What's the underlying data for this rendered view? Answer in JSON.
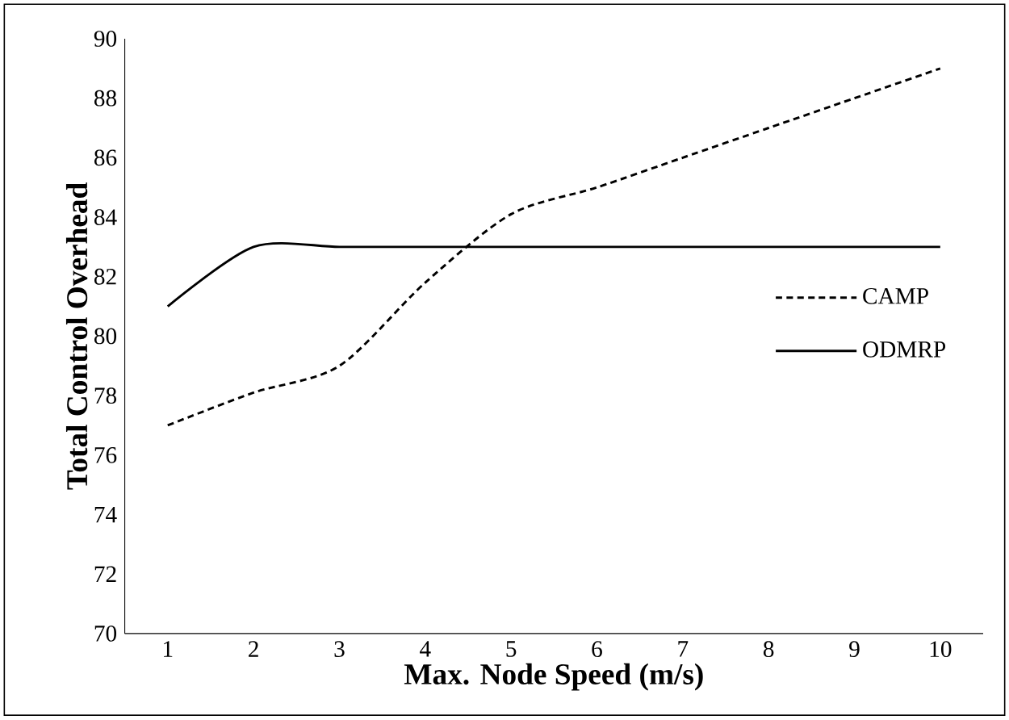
{
  "chart_data": {
    "type": "line",
    "xlabel": "Max. Node Speed (m/s)",
    "ylabel": "Total Control Overhead",
    "categories": [
      "1",
      "2",
      "3",
      "4",
      "5",
      "6",
      "7",
      "8",
      "9",
      "10"
    ],
    "series": [
      {
        "name": "CAMP",
        "color": "#000000",
        "line_style": "dashed",
        "values": [
          77,
          78.1,
          79,
          81.8,
          84.1,
          85,
          86,
          87,
          88,
          89
        ]
      },
      {
        "name": "ODMRP",
        "color": "#000000",
        "line_style": "solid",
        "values": [
          81,
          83,
          83,
          83,
          83,
          83,
          83,
          83,
          83,
          83
        ]
      }
    ],
    "ylim": [
      70,
      90
    ],
    "yticks": [
      70,
      72,
      74,
      76,
      78,
      80,
      82,
      84,
      86,
      88,
      90
    ],
    "grid": false,
    "legend": "right",
    "marker": "none"
  }
}
